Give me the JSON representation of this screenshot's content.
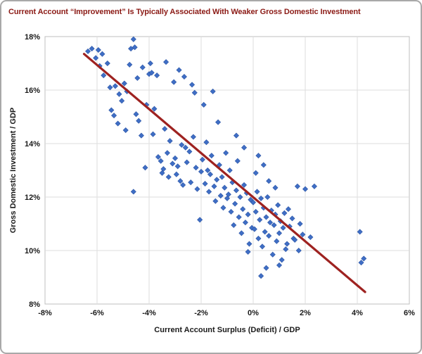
{
  "chart_data": {
    "type": "scatter",
    "title": "Current Account “Improvement” Is Typically Associated With Weaker Gross Domestic Investment",
    "xlabel": "Current Account Surplus (Deficit) / GDP",
    "ylabel": "Gross Domestic Investment / GDP",
    "xlim": [
      -8,
      6
    ],
    "ylim": [
      8,
      18
    ],
    "grid": true,
    "legend_position": "none",
    "x_ticks": {
      "values": [
        -8,
        -6,
        -4,
        -2,
        0,
        2,
        4,
        6
      ],
      "labels": [
        "-8%",
        "-6%",
        "-4%",
        "-2%",
        "0%",
        "2%",
        "4%",
        "6%"
      ]
    },
    "y_ticks": {
      "values": [
        8,
        10,
        12,
        14,
        16,
        18
      ],
      "labels": [
        "8%",
        "10%",
        "12%",
        "14%",
        "16%",
        "18%"
      ]
    },
    "trend_line": {
      "x1": -6.5,
      "y1": 17.35,
      "x2": 4.3,
      "y2": 8.45
    },
    "points": [
      [
        -6.35,
        17.45
      ],
      [
        -6.2,
        17.55
      ],
      [
        -6.05,
        17.2
      ],
      [
        -5.95,
        17.5
      ],
      [
        -5.9,
        16.9
      ],
      [
        -5.8,
        17.35
      ],
      [
        -5.75,
        16.55
      ],
      [
        -5.6,
        17.0
      ],
      [
        -5.5,
        16.1
      ],
      [
        -5.45,
        15.25
      ],
      [
        -5.35,
        15.05
      ],
      [
        -5.3,
        16.15
      ],
      [
        -5.2,
        14.75
      ],
      [
        -5.15,
        15.85
      ],
      [
        -5.05,
        15.6
      ],
      [
        -4.95,
        16.25
      ],
      [
        -4.9,
        14.5
      ],
      [
        -4.85,
        15.95
      ],
      [
        -4.75,
        16.95
      ],
      [
        -4.7,
        17.55
      ],
      [
        -4.6,
        17.9
      ],
      [
        -4.55,
        17.6
      ],
      [
        -4.5,
        15.1
      ],
      [
        -4.45,
        16.45
      ],
      [
        -4.4,
        14.85
      ],
      [
        -4.3,
        14.3
      ],
      [
        -4.25,
        16.85
      ],
      [
        -4.15,
        13.1
      ],
      [
        -4.1,
        15.45
      ],
      [
        -4.0,
        16.6
      ],
      [
        -4.6,
        12.2
      ],
      [
        -3.95,
        17.0
      ],
      [
        -3.9,
        16.65
      ],
      [
        -3.85,
        14.35
      ],
      [
        -3.8,
        15.3
      ],
      [
        -3.7,
        16.55
      ],
      [
        -3.65,
        13.5
      ],
      [
        -3.55,
        13.35
      ],
      [
        -3.5,
        12.9
      ],
      [
        -3.45,
        13.05
      ],
      [
        -3.4,
        14.55
      ],
      [
        -3.3,
        13.65
      ],
      [
        -3.25,
        12.75
      ],
      [
        -3.2,
        14.1
      ],
      [
        -3.1,
        13.25
      ],
      [
        -3.05,
        16.3
      ],
      [
        -3.0,
        13.45
      ],
      [
        -3.35,
        17.05
      ],
      [
        -2.85,
        16.75
      ],
      [
        -2.65,
        16.5
      ],
      [
        -2.35,
        16.2
      ],
      [
        -2.25,
        15.9
      ],
      [
        -2.95,
        12.85
      ],
      [
        -2.9,
        13.15
      ],
      [
        -2.8,
        12.6
      ],
      [
        -2.75,
        13.95
      ],
      [
        -2.7,
        12.45
      ],
      [
        -2.6,
        13.85
      ],
      [
        -2.55,
        13.3
      ],
      [
        -2.45,
        13.7
      ],
      [
        -2.4,
        12.55
      ],
      [
        -2.3,
        14.25
      ],
      [
        -2.2,
        13.1
      ],
      [
        -2.15,
        12.3
      ],
      [
        -2.05,
        11.15
      ],
      [
        -2.0,
        12.95
      ],
      [
        -1.9,
        15.45
      ],
      [
        -1.55,
        15.95
      ],
      [
        -1.35,
        14.8
      ],
      [
        -1.95,
        13.4
      ],
      [
        -1.85,
        12.5
      ],
      [
        -1.8,
        14.05
      ],
      [
        -1.75,
        13.0
      ],
      [
        -1.7,
        12.2
      ],
      [
        -1.65,
        12.85
      ],
      [
        -1.6,
        13.55
      ],
      [
        -1.5,
        12.4
      ],
      [
        -1.45,
        11.85
      ],
      [
        -1.4,
        12.65
      ],
      [
        -1.3,
        13.2
      ],
      [
        -1.25,
        12.05
      ],
      [
        -1.2,
        12.75
      ],
      [
        -1.15,
        11.6
      ],
      [
        -1.1,
        12.35
      ],
      [
        -1.05,
        13.65
      ],
      [
        -1.0,
        11.95
      ],
      [
        -0.95,
        12.1
      ],
      [
        -0.9,
        13.0
      ],
      [
        -0.85,
        11.45
      ],
      [
        -0.8,
        12.55
      ],
      [
        -0.75,
        10.95
      ],
      [
        -0.7,
        11.75
      ],
      [
        -0.65,
        12.25
      ],
      [
        -0.6,
        13.35
      ],
      [
        -0.55,
        11.25
      ],
      [
        -0.5,
        12.0
      ],
      [
        -0.45,
        10.65
      ],
      [
        -0.4,
        11.55
      ],
      [
        -0.35,
        12.45
      ],
      [
        -0.3,
        11.05
      ],
      [
        -0.25,
        12.15
      ],
      [
        -0.2,
        11.35
      ],
      [
        -0.15,
        10.25
      ],
      [
        -0.1,
        11.9
      ],
      [
        -0.05,
        10.85
      ],
      [
        -0.65,
        14.3
      ],
      [
        -0.35,
        13.85
      ],
      [
        -0.2,
        9.95
      ],
      [
        0.0,
        11.8
      ],
      [
        0.05,
        10.8
      ],
      [
        0.1,
        11.45
      ],
      [
        0.15,
        12.2
      ],
      [
        0.2,
        10.45
      ],
      [
        0.25,
        11.15
      ],
      [
        0.3,
        11.95
      ],
      [
        0.3,
        9.05
      ],
      [
        0.35,
        10.15
      ],
      [
        0.4,
        11.6
      ],
      [
        0.45,
        10.7
      ],
      [
        0.5,
        11.25
      ],
      [
        0.5,
        9.35
      ],
      [
        0.55,
        12.0
      ],
      [
        0.6,
        10.55
      ],
      [
        0.65,
        11.05
      ],
      [
        0.7,
        11.5
      ],
      [
        0.75,
        9.85
      ],
      [
        0.8,
        10.95
      ],
      [
        0.85,
        11.35
      ],
      [
        0.9,
        10.35
      ],
      [
        0.95,
        11.7
      ],
      [
        1.0,
        10.65
      ],
      [
        1.0,
        9.45
      ],
      [
        0.1,
        12.9
      ],
      [
        0.2,
        13.55
      ],
      [
        0.4,
        13.2
      ],
      [
        0.6,
        12.6
      ],
      [
        0.85,
        12.35
      ],
      [
        1.05,
        11.1
      ],
      [
        1.1,
        9.65
      ],
      [
        1.15,
        10.85
      ],
      [
        1.2,
        11.4
      ],
      [
        1.25,
        10.05
      ],
      [
        1.3,
        10.25
      ],
      [
        1.35,
        11.55
      ],
      [
        1.4,
        10.9
      ],
      [
        1.5,
        11.2
      ],
      [
        1.55,
        10.45
      ],
      [
        1.6,
        10.4
      ],
      [
        1.7,
        12.4
      ],
      [
        1.75,
        10.0
      ],
      [
        1.8,
        11.0
      ],
      [
        1.9,
        10.6
      ],
      [
        2.0,
        12.3
      ],
      [
        2.2,
        10.5
      ],
      [
        2.35,
        12.4
      ],
      [
        4.1,
        10.7
      ],
      [
        4.15,
        9.55
      ],
      [
        4.25,
        9.7
      ]
    ],
    "colors": {
      "title": "#8b1a15",
      "point": "#3f6ec5",
      "point_edge": "#2c55a5",
      "trend": "#9e2220",
      "grid": "#dedede",
      "plot_border": "#bfbfbf",
      "plot_bg": "#ffffff",
      "tick_text": "#1a1a1a"
    }
  }
}
